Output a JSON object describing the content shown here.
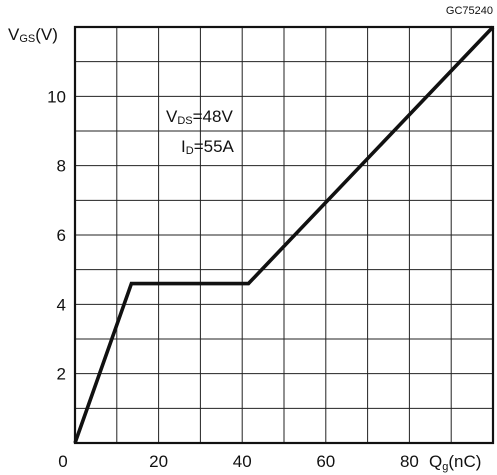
{
  "figure_code": "GC75240",
  "chart_data": {
    "type": "line",
    "title": "",
    "xlabel": {
      "main": "Q",
      "sub": "g",
      "unit": "(nC)"
    },
    "ylabel": {
      "main": "V",
      "sub": "GS",
      "unit": "(V)"
    },
    "xlim": [
      0,
      100
    ],
    "ylim": [
      0,
      12
    ],
    "x_grid_step": 10,
    "y_grid_step": 1,
    "grid": true,
    "x_ticks": [
      {
        "value": 0,
        "label": "0"
      },
      {
        "value": 20,
        "label": "20"
      },
      {
        "value": 40,
        "label": "40"
      },
      {
        "value": 60,
        "label": "60"
      },
      {
        "value": 80,
        "label": "80"
      }
    ],
    "y_ticks": [
      {
        "value": 2,
        "label": "2"
      },
      {
        "value": 4,
        "label": "4"
      },
      {
        "value": 6,
        "label": "6"
      },
      {
        "value": 8,
        "label": "8"
      },
      {
        "value": 10,
        "label": "10"
      }
    ],
    "series": [
      {
        "x": [
          0,
          13.5,
          41.5,
          100
        ],
        "y": [
          0,
          4.6,
          4.6,
          12
        ]
      }
    ],
    "annotations": [
      {
        "main": "V",
        "sub": "DS",
        "value": "=48V"
      },
      {
        "main": "I",
        "sub": "D",
        "value": "=55A"
      }
    ]
  }
}
